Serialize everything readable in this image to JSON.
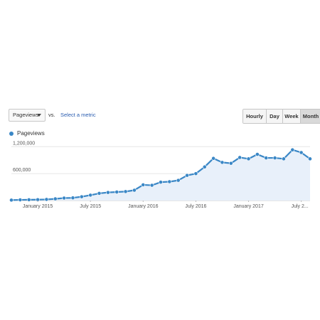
{
  "toolbar": {
    "metric": "Pageviews",
    "vs_label": "vs.",
    "select_metric_label": "Select a metric",
    "ranges": [
      "Hourly",
      "Day",
      "Week",
      "Month"
    ],
    "active_range": "Month"
  },
  "legend": {
    "label": "Pageviews",
    "color": "#3a87c6"
  },
  "chart_data": {
    "type": "area",
    "title": "",
    "xlabel": "",
    "ylabel": "",
    "ylim": [
      0,
      1300000
    ],
    "yticks": [
      "1,200,000",
      "600,000"
    ],
    "xticks": [
      "January 2015",
      "July 2015",
      "January 2016",
      "July 2016",
      "January 2017",
      "July 2..."
    ],
    "series": [
      {
        "name": "Pageviews",
        "color": "#3a87c6",
        "fill": "#e8f0fa",
        "values": [
          10000,
          15000,
          18000,
          20000,
          25000,
          38000,
          55000,
          60000,
          85000,
          120000,
          160000,
          180000,
          190000,
          200000,
          230000,
          350000,
          340000,
          410000,
          420000,
          450000,
          560000,
          600000,
          750000,
          940000,
          850000,
          830000,
          960000,
          930000,
          1030000,
          950000,
          950000,
          930000,
          1130000,
          1070000,
          930000
        ]
      }
    ]
  }
}
